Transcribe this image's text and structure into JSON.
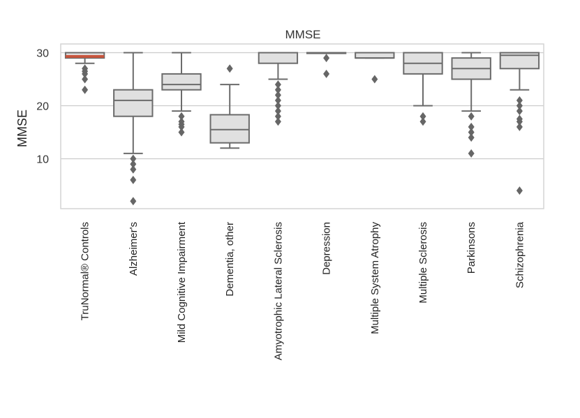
{
  "chart_data": {
    "type": "box",
    "title": "MMSE",
    "ylabel": "MMSE",
    "xlabel": "",
    "ylim": [
      0,
      31
    ],
    "yticks": [
      10,
      20,
      30
    ],
    "grid": "horizontal",
    "colors": {
      "box_fill": "#e0e0e0",
      "box_edge": "#6b6b6b",
      "median": "#6b6b6b",
      "highlight_median": "#c8553d",
      "grid": "#cccccc"
    },
    "categories": [
      "TruNormal® Controls",
      "Alzheimer's",
      "Mild Cognitive Impairment",
      "Dementia, other",
      "Amyotrophic Lateral Sclerosis",
      "Depression",
      "Multiple System Atrophy",
      "Multiple Sclerosis",
      "Parkinsons",
      "Schizophrenia"
    ],
    "boxes": [
      {
        "whisker_low": 28,
        "q1": 29,
        "median": 29.3,
        "q3": 30,
        "whisker_high": 30,
        "outliers": [
          27,
          26.5,
          26,
          25,
          23
        ],
        "highlight": true
      },
      {
        "whisker_low": 11,
        "q1": 18,
        "median": 21,
        "q3": 23,
        "whisker_high": 30,
        "outliers": [
          10,
          9,
          8,
          6,
          2
        ]
      },
      {
        "whisker_low": 19,
        "q1": 23,
        "median": 24,
        "q3": 26,
        "whisker_high": 30,
        "outliers": [
          18,
          17,
          16.5,
          16,
          15
        ]
      },
      {
        "whisker_low": 12,
        "q1": 13,
        "median": 15.5,
        "q3": 18.3,
        "whisker_high": 24,
        "outliers": [
          27
        ]
      },
      {
        "whisker_low": 25,
        "q1": 28,
        "median": 30,
        "q3": 30,
        "whisker_high": 30,
        "outliers": [
          24,
          23,
          22,
          21,
          20,
          19,
          18,
          17
        ]
      },
      {
        "whisker_low": 30,
        "q1": 30,
        "median": 30,
        "q3": 30,
        "whisker_high": 30,
        "outliers": [
          29,
          26
        ]
      },
      {
        "whisker_low": 29,
        "q1": 29,
        "median": 29,
        "q3": 30,
        "whisker_high": 30,
        "outliers": [
          25
        ]
      },
      {
        "whisker_low": 20,
        "q1": 26,
        "median": 28,
        "q3": 30,
        "whisker_high": 30,
        "outliers": [
          18,
          17
        ]
      },
      {
        "whisker_low": 19,
        "q1": 25,
        "median": 27,
        "q3": 29,
        "whisker_high": 30,
        "outliers": [
          18,
          16,
          15,
          14,
          11
        ]
      },
      {
        "whisker_low": 23,
        "q1": 27,
        "median": 29.5,
        "q3": 30,
        "whisker_high": 30,
        "outliers": [
          21,
          20,
          19,
          17.5,
          17,
          16,
          4
        ]
      }
    ]
  }
}
